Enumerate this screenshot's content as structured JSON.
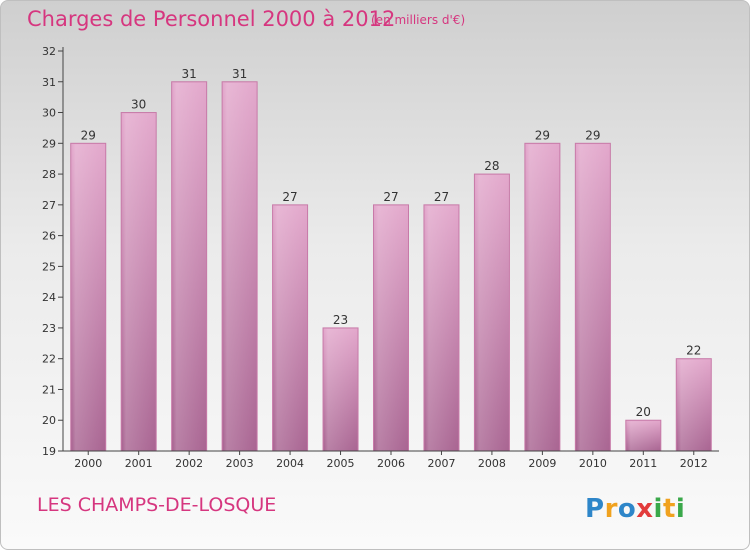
{
  "header": {
    "title": "Charges de Personnel 2000 à 2012",
    "subtitle": "(en milliers d'€)"
  },
  "footer": {
    "place": "LES CHAMPS-DE-LOSQUE",
    "logo_text": "Proxiti"
  },
  "colors": {
    "title": "#d6367f",
    "bar_top": "#e3a8cc",
    "bar_bottom": "#a96592",
    "bar_edge": "#c77aa8",
    "axis": "#444444"
  },
  "chart_data": {
    "type": "bar",
    "title": "Charges de Personnel 2000 à 2012",
    "subtitle": "(en milliers d'€)",
    "categories": [
      "2000",
      "2001",
      "2002",
      "2003",
      "2004",
      "2005",
      "2006",
      "2007",
      "2008",
      "2009",
      "2010",
      "2011",
      "2012"
    ],
    "values": [
      29,
      30,
      31,
      31,
      27,
      23,
      27,
      27,
      28,
      29,
      29,
      20,
      22
    ],
    "ylim": [
      19,
      32
    ],
    "yticks": [
      19,
      20,
      21,
      22,
      23,
      24,
      25,
      26,
      27,
      28,
      29,
      30,
      31,
      32
    ],
    "xlabel": "",
    "ylabel": "",
    "grid": false,
    "legend": "none"
  }
}
